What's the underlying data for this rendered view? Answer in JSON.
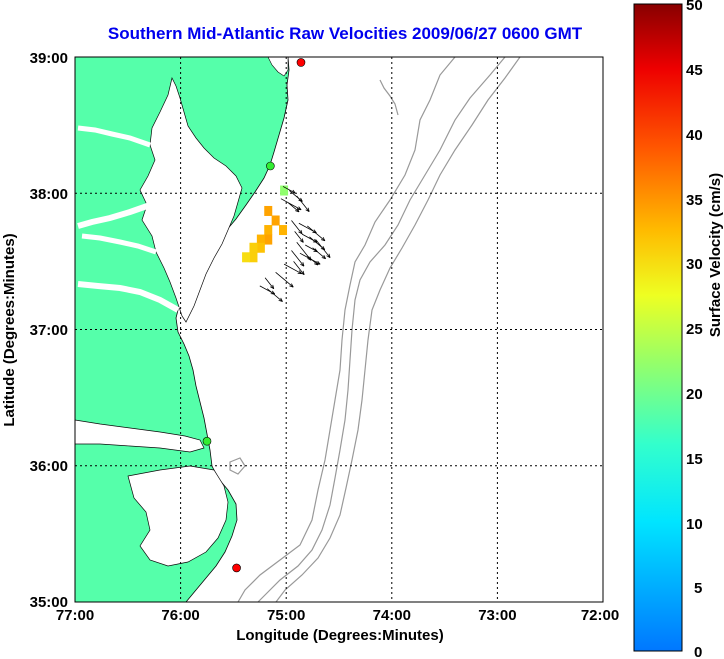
{
  "title": "Southern Mid-Atlantic Raw Velocities 2009/06/27 0600 GMT",
  "map": {
    "xlabel": "Longitude (Degrees:Minutes)",
    "ylabel": "Latitude (Degrees:Minutes)",
    "x_ticks": [
      "77:00",
      "76:00",
      "75:00",
      "74:00",
      "73:00",
      "72:00"
    ],
    "y_ticks": [
      "39:00",
      "38:00",
      "37:00",
      "36:00",
      "35:00"
    ],
    "lon_range": [
      -77,
      -72
    ],
    "lat_range": [
      35,
      39
    ],
    "land_color": "#55ffaa",
    "vectors_origin": [
      [
        -75.03,
        38.05
      ],
      [
        -74.97,
        38.02
      ],
      [
        -74.9,
        37.98
      ],
      [
        -75.05,
        37.96
      ],
      [
        -74.98,
        37.93
      ],
      [
        -74.95,
        37.8
      ],
      [
        -74.88,
        37.78
      ],
      [
        -74.8,
        37.76
      ],
      [
        -74.92,
        37.72
      ],
      [
        -74.85,
        37.7
      ],
      [
        -74.78,
        37.68
      ],
      [
        -74.9,
        37.64
      ],
      [
        -74.82,
        37.62
      ],
      [
        -74.75,
        37.6
      ],
      [
        -74.95,
        37.58
      ],
      [
        -74.87,
        37.56
      ],
      [
        -74.8,
        37.54
      ],
      [
        -74.93,
        37.5
      ],
      [
        -75.02,
        37.48
      ],
      [
        -75.1,
        37.42
      ],
      [
        -75.2,
        37.38
      ],
      [
        -75.25,
        37.32
      ],
      [
        -75.18,
        37.3
      ],
      [
        -74.72,
        37.66
      ]
    ],
    "velocity_cells": [
      {
        "lon": -75.17,
        "lat": 37.87,
        "value": 34
      },
      {
        "lon": -75.1,
        "lat": 37.8,
        "value": 34
      },
      {
        "lon": -75.03,
        "lat": 37.73,
        "value": 33
      },
      {
        "lon": -75.17,
        "lat": 37.73,
        "value": 33
      },
      {
        "lon": -75.17,
        "lat": 37.66,
        "value": 34
      },
      {
        "lon": -75.24,
        "lat": 37.66,
        "value": 33
      },
      {
        "lon": -75.24,
        "lat": 37.6,
        "value": 32
      },
      {
        "lon": -75.31,
        "lat": 37.6,
        "value": 31
      },
      {
        "lon": -75.31,
        "lat": 37.53,
        "value": 31
      },
      {
        "lon": -75.38,
        "lat": 37.53,
        "value": 30
      },
      {
        "lon": -75.02,
        "lat": 38.02,
        "value": 22
      }
    ],
    "stations": [
      {
        "lon": -74.86,
        "lat": 38.96,
        "color": "#ff0000"
      },
      {
        "lon": -75.15,
        "lat": 38.2,
        "color": "#33ee33"
      },
      {
        "lon": -75.75,
        "lat": 36.18,
        "color": "#33ee33"
      },
      {
        "lon": -75.47,
        "lat": 35.25,
        "color": "#ff0000"
      }
    ]
  },
  "colorbar": {
    "label": "Surface Velocity (cm/s)",
    "ticks": [
      "50",
      "45",
      "40",
      "35",
      "30",
      "25",
      "20",
      "15",
      "10",
      "5",
      "0"
    ],
    "min": 0,
    "max": 50
  }
}
